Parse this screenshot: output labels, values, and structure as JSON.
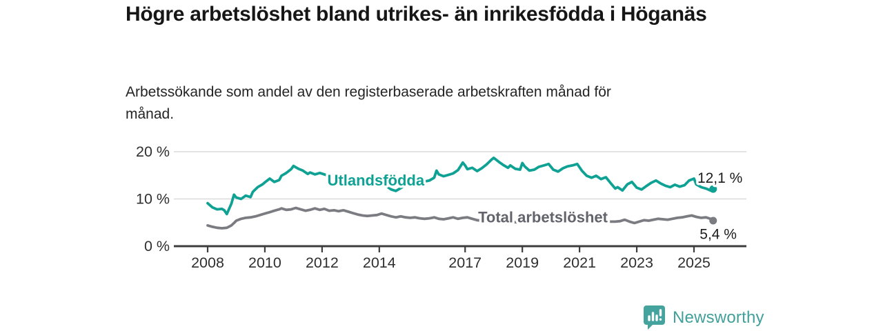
{
  "title": "Högre arbetslöshet bland utrikes- än inrikesfödda i Höganäs",
  "subtitle": "Arbetssökande som andel av den registerbaserade arbetskraften månad för månad.",
  "footer": {
    "brand": "Newsworthy",
    "logo_color": "#45a39d"
  },
  "colors": {
    "accent_teal": "#0fa294",
    "line_gray": "#7b7b82",
    "label_gray": "#63636b",
    "text_dark": "#1c1c1c",
    "gridline": "#dadada",
    "axis": "#3d3d3d"
  },
  "chart_data": {
    "type": "line",
    "title": "Högre arbetslöshet bland utrikes- än inrikesfödda i Höganäs",
    "subtitle": "Arbetssökande som andel av den registerbaserade arbetskraften månad för månad.",
    "xlabel": "",
    "ylabel": "",
    "grid": "horizontal",
    "legend_position": "inline-labels",
    "x_range": [
      2008,
      2025.9
    ],
    "y_range": [
      0,
      21
    ],
    "y_ticks": [
      {
        "v": 0,
        "label": "0 %"
      },
      {
        "v": 10,
        "label": "10 %"
      },
      {
        "v": 20,
        "label": "20 %"
      }
    ],
    "x_ticks": [
      {
        "v": 2008,
        "label": "2008"
      },
      {
        "v": 2010,
        "label": "2010"
      },
      {
        "v": 2012,
        "label": "2012"
      },
      {
        "v": 2014,
        "label": "2014"
      },
      {
        "v": 2017,
        "label": "2017"
      },
      {
        "v": 2019,
        "label": "2019"
      },
      {
        "v": 2021,
        "label": "2021"
      },
      {
        "v": 2023,
        "label": "2023"
      },
      {
        "v": 2025,
        "label": "2025"
      }
    ],
    "series": [
      {
        "name": "Total arbetslöshet",
        "color": "#7b7b82",
        "end_value_label": "5,4 %",
        "points": [
          [
            2008.0,
            4.4
          ],
          [
            2008.17,
            4.1
          ],
          [
            2008.33,
            3.9
          ],
          [
            2008.5,
            3.8
          ],
          [
            2008.67,
            3.9
          ],
          [
            2008.83,
            4.4
          ],
          [
            2008.92,
            4.9
          ],
          [
            2009.0,
            5.4
          ],
          [
            2009.17,
            5.8
          ],
          [
            2009.33,
            6.0
          ],
          [
            2009.5,
            6.1
          ],
          [
            2009.67,
            6.3
          ],
          [
            2009.83,
            6.6
          ],
          [
            2010.0,
            6.9
          ],
          [
            2010.17,
            7.2
          ],
          [
            2010.33,
            7.5
          ],
          [
            2010.5,
            7.8
          ],
          [
            2010.58,
            8.0
          ],
          [
            2010.75,
            7.7
          ],
          [
            2010.92,
            7.8
          ],
          [
            2011.08,
            8.1
          ],
          [
            2011.25,
            7.8
          ],
          [
            2011.42,
            7.5
          ],
          [
            2011.58,
            7.7
          ],
          [
            2011.75,
            8.0
          ],
          [
            2011.92,
            7.7
          ],
          [
            2012.08,
            7.9
          ],
          [
            2012.25,
            7.5
          ],
          [
            2012.42,
            7.6
          ],
          [
            2012.58,
            7.4
          ],
          [
            2012.75,
            7.6
          ],
          [
            2012.92,
            7.3
          ],
          [
            2013.08,
            7.0
          ],
          [
            2013.25,
            6.7
          ],
          [
            2013.42,
            6.5
          ],
          [
            2013.58,
            6.4
          ],
          [
            2013.75,
            6.5
          ],
          [
            2013.92,
            6.6
          ],
          [
            2014.08,
            6.9
          ],
          [
            2014.25,
            6.6
          ],
          [
            2014.42,
            6.3
          ],
          [
            2014.58,
            6.1
          ],
          [
            2014.75,
            6.3
          ],
          [
            2014.92,
            6.1
          ],
          [
            2015.08,
            6.0
          ],
          [
            2015.25,
            6.1
          ],
          [
            2015.42,
            5.9
          ],
          [
            2015.58,
            5.8
          ],
          [
            2015.75,
            5.9
          ],
          [
            2015.92,
            6.1
          ],
          [
            2016.08,
            5.8
          ],
          [
            2016.25,
            5.7
          ],
          [
            2016.42,
            5.9
          ],
          [
            2016.58,
            6.1
          ],
          [
            2016.75,
            5.8
          ],
          [
            2016.92,
            6.0
          ],
          [
            2017.08,
            6.1
          ],
          [
            2017.25,
            5.8
          ],
          [
            2017.42,
            5.5
          ],
          [
            2017.58,
            5.4
          ],
          [
            2017.75,
            5.3
          ],
          [
            2017.92,
            5.4
          ],
          [
            2018.08,
            5.2
          ],
          [
            2018.25,
            5.1
          ],
          [
            2018.42,
            5.2
          ],
          [
            2018.58,
            5.0
          ],
          [
            2018.75,
            5.1
          ],
          [
            2018.92,
            5.0
          ],
          [
            2019.08,
            5.1
          ],
          [
            2019.25,
            5.0
          ],
          [
            2019.42,
            5.1
          ],
          [
            2019.58,
            5.2
          ],
          [
            2019.75,
            5.3
          ],
          [
            2019.92,
            5.5
          ],
          [
            2020.08,
            5.9
          ],
          [
            2020.25,
            6.3
          ],
          [
            2020.42,
            6.5
          ],
          [
            2020.58,
            6.4
          ],
          [
            2020.75,
            6.2
          ],
          [
            2020.92,
            6.0
          ],
          [
            2021.08,
            5.9
          ],
          [
            2021.25,
            5.7
          ],
          [
            2021.42,
            5.6
          ],
          [
            2021.58,
            5.5
          ],
          [
            2021.75,
            5.4
          ],
          [
            2021.92,
            5.3
          ],
          [
            2022.08,
            5.2
          ],
          [
            2022.25,
            5.2
          ],
          [
            2022.42,
            5.3
          ],
          [
            2022.58,
            5.6
          ],
          [
            2022.75,
            5.2
          ],
          [
            2022.92,
            4.9
          ],
          [
            2023.08,
            5.2
          ],
          [
            2023.25,
            5.5
          ],
          [
            2023.42,
            5.4
          ],
          [
            2023.58,
            5.6
          ],
          [
            2023.75,
            5.8
          ],
          [
            2023.92,
            5.7
          ],
          [
            2024.08,
            5.6
          ],
          [
            2024.25,
            5.8
          ],
          [
            2024.42,
            6.0
          ],
          [
            2024.58,
            6.1
          ],
          [
            2024.75,
            6.3
          ],
          [
            2024.92,
            6.5
          ],
          [
            2025.08,
            6.2
          ],
          [
            2025.25,
            6.0
          ],
          [
            2025.42,
            6.1
          ],
          [
            2025.58,
            5.8
          ],
          [
            2025.67,
            5.4
          ]
        ]
      },
      {
        "name": "Utlandsfödda",
        "color": "#0fa294",
        "end_value_label": "12,1 %",
        "points": [
          [
            2008.0,
            9.1
          ],
          [
            2008.17,
            8.2
          ],
          [
            2008.33,
            7.8
          ],
          [
            2008.5,
            7.9
          ],
          [
            2008.58,
            7.6
          ],
          [
            2008.67,
            6.8
          ],
          [
            2008.75,
            7.9
          ],
          [
            2008.83,
            9.0
          ],
          [
            2008.92,
            10.9
          ],
          [
            2009.0,
            10.3
          ],
          [
            2009.17,
            10.0
          ],
          [
            2009.33,
            10.7
          ],
          [
            2009.5,
            10.4
          ],
          [
            2009.58,
            11.5
          ],
          [
            2009.75,
            12.5
          ],
          [
            2009.92,
            13.1
          ],
          [
            2010.0,
            13.5
          ],
          [
            2010.17,
            14.3
          ],
          [
            2010.33,
            13.6
          ],
          [
            2010.5,
            14.0
          ],
          [
            2010.58,
            14.9
          ],
          [
            2010.75,
            15.5
          ],
          [
            2010.92,
            16.3
          ],
          [
            2011.0,
            17.0
          ],
          [
            2011.17,
            16.4
          ],
          [
            2011.33,
            16.0
          ],
          [
            2011.5,
            15.3
          ],
          [
            2011.58,
            15.6
          ],
          [
            2011.75,
            15.2
          ],
          [
            2011.92,
            15.5
          ],
          [
            2012.08,
            15.2
          ],
          [
            2012.25,
            14.8
          ],
          [
            2012.42,
            15.1
          ],
          [
            2012.58,
            14.6
          ],
          [
            2012.75,
            14.9
          ],
          [
            2012.92,
            14.4
          ],
          [
            2013.08,
            14.7
          ],
          [
            2013.25,
            14.4
          ],
          [
            2013.42,
            14.8
          ],
          [
            2013.58,
            14.3
          ],
          [
            2013.75,
            14.6
          ],
          [
            2013.92,
            14.1
          ],
          [
            2014.08,
            13.6
          ],
          [
            2014.25,
            12.7
          ],
          [
            2014.42,
            12.0
          ],
          [
            2014.58,
            11.7
          ],
          [
            2014.75,
            12.3
          ],
          [
            2014.92,
            12.9
          ],
          [
            2015.08,
            13.4
          ],
          [
            2015.25,
            13.8
          ],
          [
            2015.42,
            14.0
          ],
          [
            2015.58,
            13.7
          ],
          [
            2015.75,
            13.9
          ],
          [
            2015.92,
            14.5
          ],
          [
            2016.0,
            16.0
          ],
          [
            2016.08,
            15.2
          ],
          [
            2016.25,
            14.8
          ],
          [
            2016.42,
            15.1
          ],
          [
            2016.58,
            15.4
          ],
          [
            2016.75,
            16.1
          ],
          [
            2016.92,
            17.7
          ],
          [
            2017.0,
            17.1
          ],
          [
            2017.08,
            16.3
          ],
          [
            2017.25,
            16.6
          ],
          [
            2017.42,
            15.9
          ],
          [
            2017.58,
            16.5
          ],
          [
            2017.75,
            17.3
          ],
          [
            2017.92,
            18.3
          ],
          [
            2018.0,
            18.7
          ],
          [
            2018.17,
            17.9
          ],
          [
            2018.33,
            17.2
          ],
          [
            2018.5,
            16.6
          ],
          [
            2018.58,
            17.1
          ],
          [
            2018.75,
            16.4
          ],
          [
            2018.92,
            16.2
          ],
          [
            2019.0,
            17.6
          ],
          [
            2019.08,
            16.9
          ],
          [
            2019.25,
            16.0
          ],
          [
            2019.42,
            16.2
          ],
          [
            2019.58,
            16.8
          ],
          [
            2019.75,
            17.1
          ],
          [
            2019.92,
            17.4
          ],
          [
            2020.08,
            16.2
          ],
          [
            2020.25,
            15.8
          ],
          [
            2020.42,
            16.5
          ],
          [
            2020.58,
            16.9
          ],
          [
            2020.75,
            17.1
          ],
          [
            2020.92,
            17.4
          ],
          [
            2021.0,
            16.7
          ],
          [
            2021.08,
            16.0
          ],
          [
            2021.25,
            14.9
          ],
          [
            2021.42,
            14.5
          ],
          [
            2021.58,
            14.9
          ],
          [
            2021.75,
            14.2
          ],
          [
            2021.92,
            14.6
          ],
          [
            2022.08,
            13.4
          ],
          [
            2022.25,
            12.2
          ],
          [
            2022.33,
            12.5
          ],
          [
            2022.5,
            11.8
          ],
          [
            2022.67,
            13.1
          ],
          [
            2022.83,
            13.6
          ],
          [
            2023.0,
            12.4
          ],
          [
            2023.17,
            12.0
          ],
          [
            2023.33,
            12.7
          ],
          [
            2023.5,
            13.4
          ],
          [
            2023.67,
            13.9
          ],
          [
            2023.83,
            13.3
          ],
          [
            2024.0,
            12.8
          ],
          [
            2024.17,
            12.5
          ],
          [
            2024.33,
            13.0
          ],
          [
            2024.5,
            12.6
          ],
          [
            2024.67,
            12.9
          ],
          [
            2024.83,
            13.9
          ],
          [
            2025.0,
            14.3
          ],
          [
            2025.08,
            13.1
          ],
          [
            2025.25,
            12.5
          ],
          [
            2025.42,
            12.2
          ],
          [
            2025.58,
            11.8
          ],
          [
            2025.67,
            12.1
          ]
        ]
      }
    ],
    "annotations": [
      {
        "text": "Utlandsfödda",
        "x": 2013.88,
        "y": 12.85,
        "color": "#0fa294",
        "bold": true,
        "anchor": "middle"
      },
      {
        "text": "Total arbetslöshet",
        "x": 2019.72,
        "y": 5.05,
        "color": "#63636b",
        "bold": true,
        "anchor": "middle"
      },
      {
        "text": "12,1 %",
        "x": 2025.12,
        "y": 13.45,
        "color": "#1c1c1c",
        "bold": false,
        "anchor": "start"
      },
      {
        "text": "5,4 %",
        "x": 2025.2,
        "y": 1.5,
        "color": "#1c1c1c",
        "bold": false,
        "anchor": "start"
      }
    ]
  }
}
